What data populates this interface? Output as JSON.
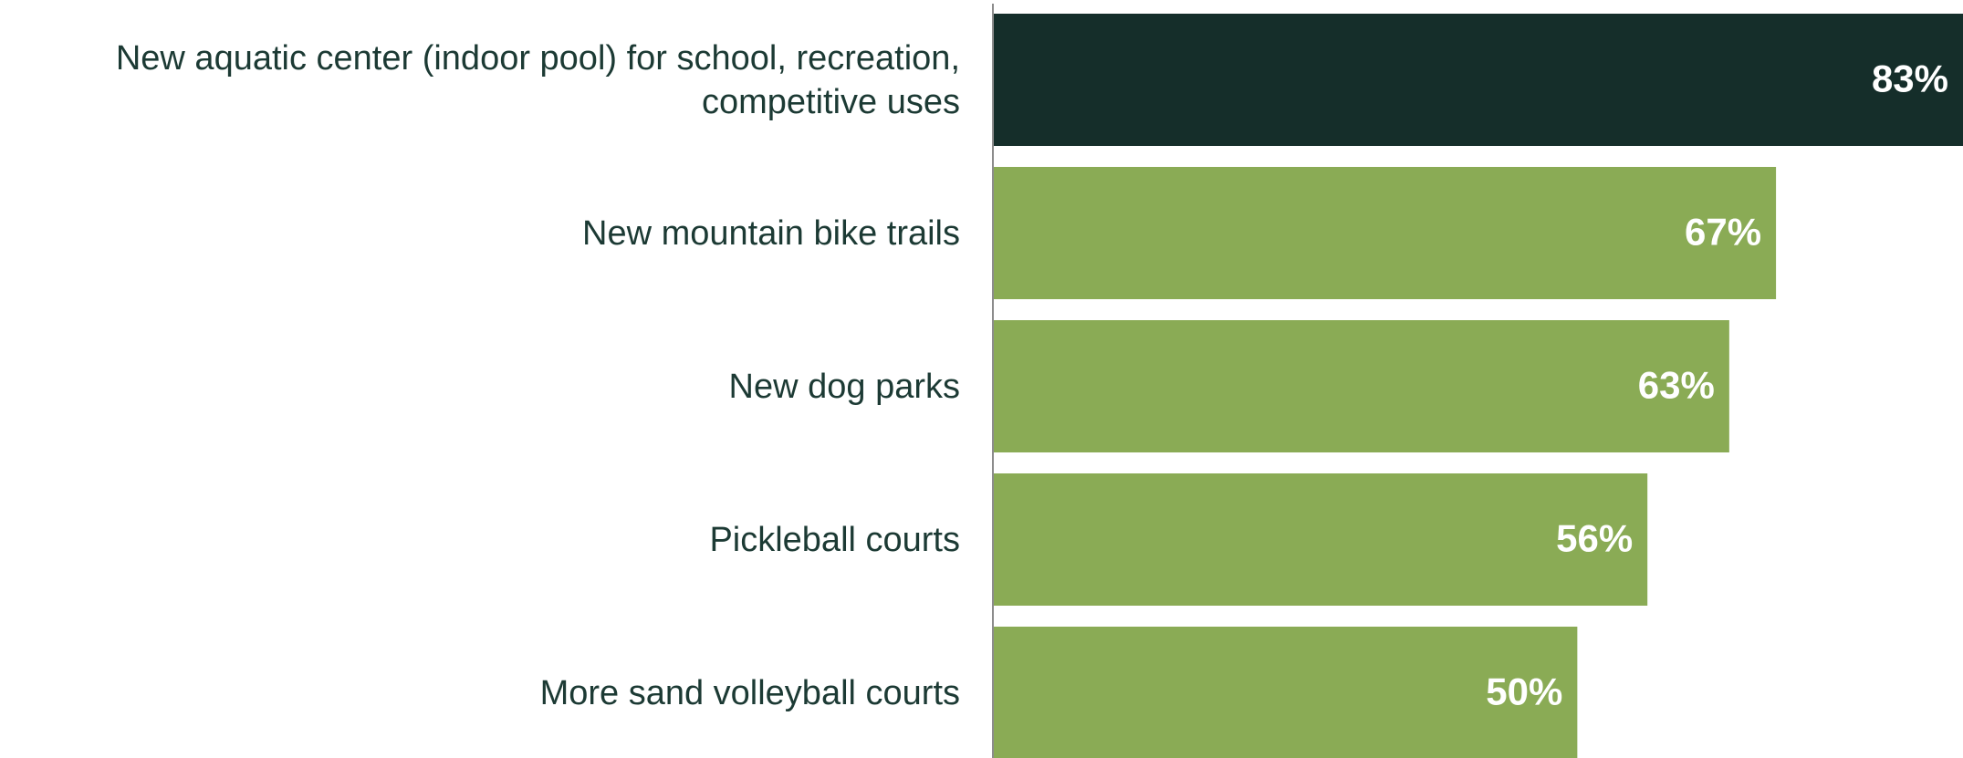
{
  "chart_data": {
    "type": "barh",
    "categories": [
      "New aquatic center (indoor pool) for school, recreation,\ncompetitive uses",
      "New mountain bike trails",
      "New dog parks",
      "Pickleball courts",
      "More sand volleyball courts"
    ],
    "values": [
      83,
      67,
      63,
      56,
      50
    ],
    "value_labels": [
      "83%",
      "67%",
      "63%",
      "56%",
      "50%"
    ],
    "colors": [
      "#152e2a",
      "#8aab55",
      "#8aab55",
      "#8aab55",
      "#8aab55"
    ],
    "xlim": [
      0,
      83
    ]
  }
}
